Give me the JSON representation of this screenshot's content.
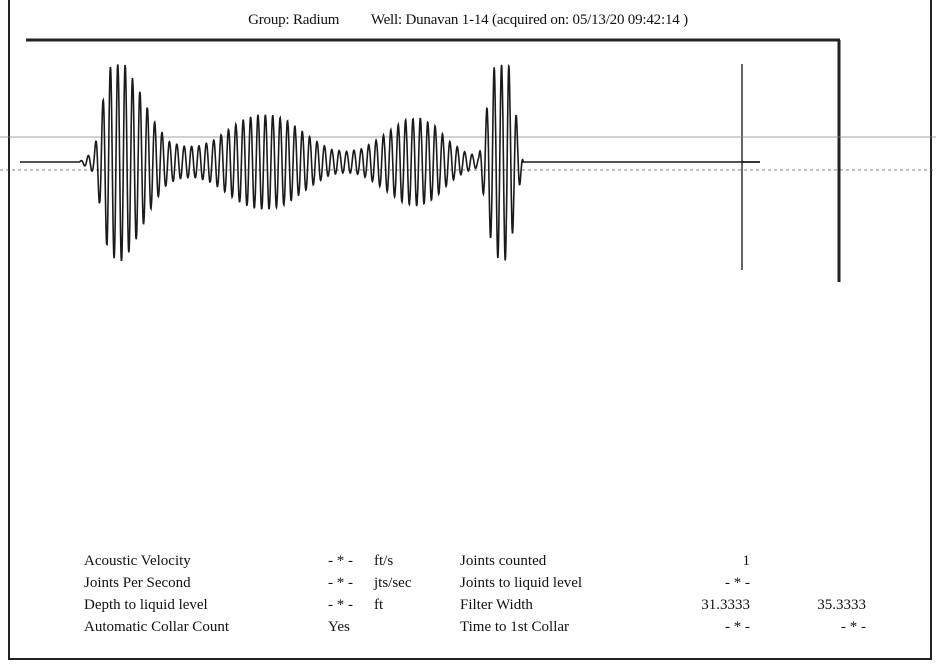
{
  "header": {
    "group": "Group: Radium",
    "well": "Well: Dunavan 1-14 (acquired on: 05/13/20 09:42:14 )"
  },
  "chart_data": {
    "type": "line",
    "title": "",
    "xlabel": "",
    "ylabel": "",
    "description_of_trace": "acoustic echo trace",
    "x": [
      0,
      2,
      4,
      6,
      8,
      10,
      12,
      14,
      16,
      18,
      20,
      22,
      24,
      26,
      28,
      30,
      32,
      34,
      36,
      38,
      40,
      42,
      44,
      46,
      48,
      50,
      52,
      54,
      56,
      58,
      60,
      62,
      64,
      66,
      68,
      70,
      72,
      74,
      76,
      78,
      80,
      82,
      84,
      86,
      88,
      90,
      92,
      94,
      96,
      98,
      100
    ],
    "y": [
      0,
      0,
      0,
      0,
      0,
      0.1,
      0.9,
      0.95,
      0.7,
      0.4,
      0.2,
      0.15,
      0.15,
      0.2,
      0.3,
      0.4,
      0.45,
      0.45,
      0.4,
      0.3,
      0.2,
      0.12,
      0.1,
      0.12,
      0.2,
      0.3,
      0.4,
      0.42,
      0.35,
      0.2,
      0.1,
      0.05,
      0.9,
      0.95,
      0.0,
      0,
      0,
      0,
      0,
      0,
      0,
      0,
      0,
      0,
      0,
      0,
      0,
      0,
      0,
      0,
      0
    ],
    "ylim": [
      -1,
      1
    ],
    "grid": false
  },
  "params": {
    "left": [
      {
        "label": "Acoustic Velocity",
        "value": "- * -",
        "unit": "ft/s"
      },
      {
        "label": "Joints Per Second",
        "value": "- * -",
        "unit": "jts/sec"
      },
      {
        "label": "Depth to liquid level",
        "value": "- * -",
        "unit": "ft"
      },
      {
        "label": "Automatic Collar Count",
        "value": "Yes",
        "unit": ""
      }
    ],
    "right": [
      {
        "label": "Joints counted",
        "value1": "1",
        "value2": ""
      },
      {
        "label": "Joints to liquid level",
        "value1": "- * -",
        "value2": ""
      },
      {
        "label": "Filter Width",
        "value1": "31.3333",
        "value2": "35.3333"
      },
      {
        "label": "Time to 1st Collar",
        "value1": "- * -",
        "value2": "- * -"
      }
    ]
  }
}
